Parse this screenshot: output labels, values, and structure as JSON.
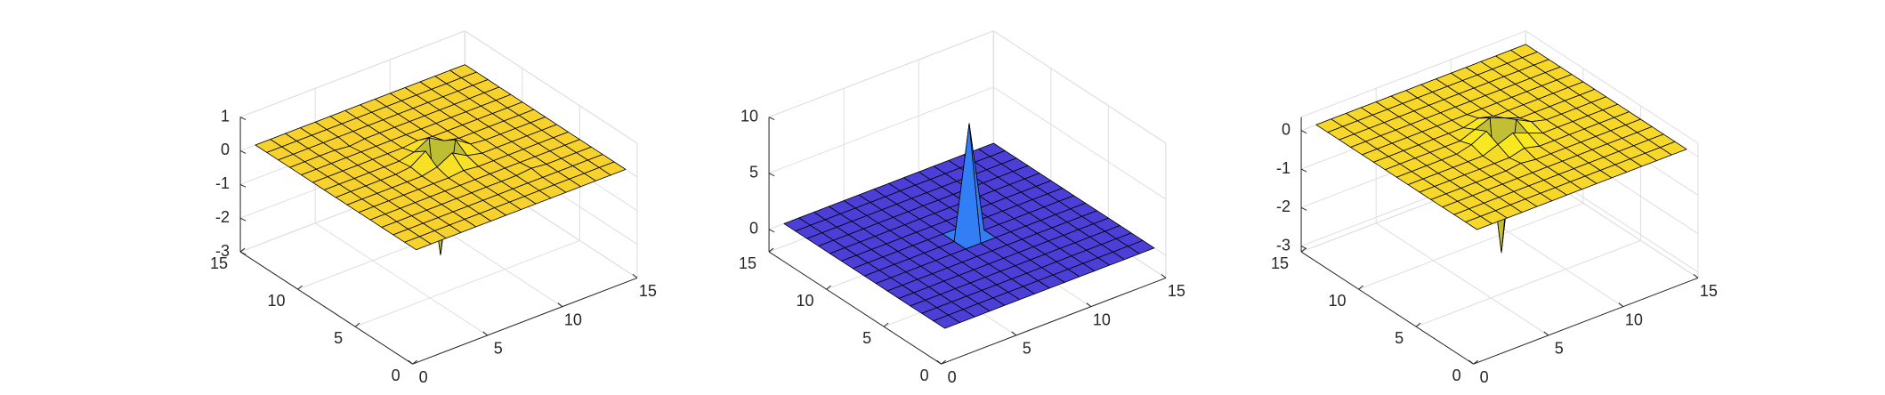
{
  "chart_data": [
    {
      "type": "surface",
      "x": [
        1,
        2,
        3,
        4,
        5,
        6,
        7,
        8,
        9,
        10,
        11,
        12,
        13,
        14,
        15
      ],
      "y": [
        1,
        2,
        3,
        4,
        5,
        6,
        7,
        8,
        9,
        10,
        11,
        12,
        13,
        14,
        15
      ],
      "z": [
        [
          0,
          0,
          0,
          0,
          0,
          0,
          0,
          0,
          0,
          0,
          0,
          0,
          0,
          0,
          0
        ],
        [
          0,
          0,
          0,
          0,
          0,
          0,
          0,
          0,
          0,
          0,
          0,
          0,
          0,
          0,
          0
        ],
        [
          0,
          0,
          0,
          0,
          0,
          0,
          0,
          0,
          0,
          0,
          0,
          0,
          0,
          0,
          0
        ],
        [
          0,
          0,
          0,
          0,
          0,
          0,
          0,
          0,
          0,
          0,
          0.05,
          0,
          0,
          0,
          0
        ],
        [
          0,
          0,
          0,
          0,
          0,
          0,
          0,
          0,
          0,
          0,
          0,
          0,
          0,
          0,
          0
        ],
        [
          0,
          0,
          0,
          0,
          0,
          0,
          0,
          0.05,
          0,
          0,
          0,
          0,
          0,
          0,
          0
        ],
        [
          0,
          0,
          0,
          0,
          0,
          0,
          0.1,
          0.35,
          0.1,
          0,
          0,
          0,
          0,
          0,
          0
        ],
        [
          0,
          0,
          0,
          0,
          0,
          0.05,
          0.35,
          -2.9,
          0.35,
          0.05,
          0,
          0,
          0,
          0,
          0
        ],
        [
          0,
          0,
          0,
          0,
          0,
          0,
          0.1,
          0.35,
          0.1,
          0,
          0,
          0,
          0,
          0,
          0
        ],
        [
          0,
          0,
          0,
          0,
          0,
          0,
          0,
          0.05,
          0,
          0,
          0,
          0,
          0,
          0,
          0
        ],
        [
          0,
          0,
          0,
          0,
          0,
          0,
          0,
          0,
          0,
          0,
          0,
          0,
          0,
          0,
          0
        ],
        [
          0,
          0,
          0,
          0,
          -0.05,
          0,
          0,
          0,
          0,
          0,
          0,
          0,
          0,
          0,
          0
        ],
        [
          0,
          0,
          0,
          0,
          0,
          0,
          0,
          0,
          0,
          0,
          0,
          0,
          0,
          0,
          0
        ],
        [
          0,
          0,
          0,
          0,
          0,
          0,
          0,
          0,
          0,
          0,
          0,
          0,
          0,
          0,
          0
        ],
        [
          0,
          0,
          0,
          0,
          0,
          0,
          0,
          0,
          0,
          0,
          0,
          0,
          0,
          0,
          0
        ]
      ],
      "xlim": [
        0,
        15
      ],
      "ylim": [
        0,
        15
      ],
      "zlim": [
        -3,
        1
      ],
      "xticks": [
        0,
        5,
        10,
        15
      ],
      "yticks": [
        0,
        5,
        10,
        15
      ],
      "zticks": [
        -3,
        -2,
        -1,
        0,
        1
      ],
      "grid": true,
      "edge_color": "#000000",
      "colormap": [
        "#3e26a8",
        "#4253f0",
        "#2d8cf5",
        "#12b5c6",
        "#3fc28a",
        "#b7bd35",
        "#f6c435",
        "#f9fb15"
      ]
    },
    {
      "type": "surface",
      "x": [
        1,
        2,
        3,
        4,
        5,
        6,
        7,
        8,
        9,
        10,
        11,
        12,
        13,
        14,
        15
      ],
      "y": [
        1,
        2,
        3,
        4,
        5,
        6,
        7,
        8,
        9,
        10,
        11,
        12,
        13,
        14,
        15
      ],
      "z": [
        [
          0,
          0,
          0,
          0,
          0,
          0,
          0,
          0,
          0,
          0,
          0,
          0,
          0,
          0,
          0
        ],
        [
          0,
          0,
          0,
          0,
          0,
          0,
          0,
          0,
          0,
          0,
          0,
          0,
          0,
          0,
          0
        ],
        [
          0,
          0,
          0,
          0,
          0,
          0,
          0,
          0,
          0,
          0,
          0,
          0,
          0,
          0,
          0
        ],
        [
          0,
          0,
          0,
          0,
          0,
          0,
          0,
          0,
          0,
          0,
          0,
          0,
          0,
          0,
          0
        ],
        [
          0,
          0,
          0,
          0,
          0,
          0,
          0,
          0,
          0,
          0,
          0,
          0,
          0,
          0,
          0
        ],
        [
          0,
          0,
          0,
          0,
          0,
          0,
          0,
          0,
          0,
          0,
          0,
          0,
          0,
          0,
          0
        ],
        [
          0,
          0,
          0,
          0,
          0,
          0,
          0,
          0,
          0,
          0,
          0,
          0,
          0,
          0,
          0
        ],
        [
          0,
          0,
          0,
          0,
          0,
          0,
          0,
          10,
          0,
          0,
          0,
          0,
          0,
          0,
          0
        ],
        [
          0,
          0,
          0,
          0,
          0,
          0,
          0,
          0,
          0,
          0,
          0,
          0,
          0,
          0,
          0
        ],
        [
          0,
          0,
          0,
          0,
          0,
          0,
          0,
          0,
          0,
          0,
          0,
          0,
          0,
          0,
          0
        ],
        [
          0,
          0,
          0,
          0,
          0,
          0,
          0,
          0,
          0,
          0,
          0,
          0,
          0,
          0,
          0
        ],
        [
          0,
          0,
          0,
          0,
          0,
          0,
          0,
          0,
          0,
          0,
          0,
          0,
          0,
          0,
          0
        ],
        [
          0,
          0,
          0,
          0,
          0,
          0,
          0,
          0,
          0,
          0,
          0,
          0,
          0,
          0,
          0
        ],
        [
          0,
          0,
          0,
          0,
          0,
          0,
          0,
          0,
          0,
          0,
          0,
          0,
          0,
          0,
          0
        ],
        [
          0,
          0,
          0,
          0,
          0,
          0,
          0,
          0,
          0,
          0,
          0,
          0,
          0,
          0,
          0
        ]
      ],
      "xlim": [
        0,
        15
      ],
      "ylim": [
        0,
        15
      ],
      "zlim": [
        -2,
        10
      ],
      "xticks": [
        0,
        5,
        10,
        15
      ],
      "yticks": [
        0,
        5,
        10,
        15
      ],
      "zticks": [
        0,
        5,
        10
      ],
      "grid": true,
      "edge_color": "#000000",
      "colormap": [
        "#4b3fd8",
        "#4253f0",
        "#2d8cf5",
        "#12b5c6",
        "#3fc28a",
        "#b7bd35",
        "#f6c435",
        "#f9fb15"
      ]
    },
    {
      "type": "surface",
      "x": [
        1,
        2,
        3,
        4,
        5,
        6,
        7,
        8,
        9,
        10,
        11,
        12,
        13,
        14,
        15
      ],
      "y": [
        1,
        2,
        3,
        4,
        5,
        6,
        7,
        8,
        9,
        10,
        11,
        12,
        13,
        14,
        15
      ],
      "z": [
        [
          0,
          0,
          0,
          0,
          0,
          0,
          0,
          0,
          0,
          0,
          0,
          0,
          0,
          0,
          0
        ],
        [
          0,
          0,
          0,
          0,
          0,
          0,
          0,
          0,
          0,
          0,
          0,
          0,
          0,
          0,
          0
        ],
        [
          0,
          0,
          0,
          0,
          0,
          0,
          0,
          0,
          0,
          0,
          0,
          0,
          0,
          0,
          0
        ],
        [
          0,
          0,
          0,
          0,
          0,
          0,
          0,
          0,
          0,
          0,
          0,
          0,
          0,
          0,
          0
        ],
        [
          0,
          0,
          0,
          0,
          0,
          0,
          0.05,
          0,
          0,
          0,
          0,
          0,
          0,
          0,
          0
        ],
        [
          0,
          0,
          0,
          0,
          0,
          0,
          0,
          0.1,
          0,
          0,
          0,
          0,
          0,
          0,
          0
        ],
        [
          0,
          0,
          0,
          0,
          0,
          0,
          0.15,
          0.3,
          0.15,
          0,
          0,
          0,
          0,
          0,
          0
        ],
        [
          0,
          0,
          0,
          0,
          0,
          0.1,
          0.3,
          -3,
          0.3,
          0.1,
          0,
          0,
          0,
          0,
          0
        ],
        [
          0,
          0,
          0,
          0,
          0,
          0,
          0.15,
          0.3,
          0.15,
          0,
          0,
          0,
          0,
          0,
          0
        ],
        [
          0,
          0,
          0,
          0,
          0,
          0,
          0,
          0.1,
          0,
          0,
          0,
          0,
          0,
          0,
          0
        ],
        [
          0,
          0,
          0,
          0,
          0,
          0,
          0,
          0,
          0,
          0,
          0,
          0,
          0,
          0,
          0
        ],
        [
          0,
          0,
          0,
          0,
          0,
          0,
          0,
          0,
          0,
          0,
          0,
          0,
          0,
          0,
          0
        ],
        [
          0,
          0,
          0,
          0,
          0,
          0,
          0,
          0,
          0,
          0,
          0,
          0,
          0,
          0,
          0
        ],
        [
          0,
          0,
          0,
          0,
          0,
          0,
          0,
          0,
          0,
          0,
          0,
          0,
          0,
          0,
          0
        ],
        [
          0,
          0,
          0,
          0,
          0,
          0,
          0,
          0,
          0,
          0,
          0,
          0,
          0,
          0,
          0
        ]
      ],
      "xlim": [
        0,
        15
      ],
      "ylim": [
        0,
        15
      ],
      "zlim": [
        -3.15,
        0.35
      ],
      "xticks": [
        0,
        5,
        10,
        15
      ],
      "yticks": [
        0,
        5,
        10,
        15
      ],
      "zticks": [
        -3,
        -2,
        -1,
        0
      ],
      "grid": true,
      "edge_color": "#000000",
      "colormap": [
        "#3e26a8",
        "#4253f0",
        "#2d8cf5",
        "#12b5c6",
        "#3fc28a",
        "#b7bd35",
        "#f6c435",
        "#f9fb15"
      ]
    }
  ]
}
